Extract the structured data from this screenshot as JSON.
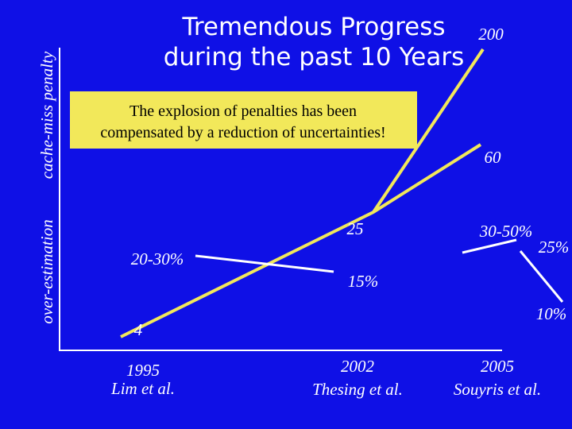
{
  "title": [
    "Tremendous Progress",
    "during the past 10 Years"
  ],
  "callout": [
    "The explosion of penalties has been",
    "compensated by a reduction of uncertainties!"
  ],
  "axis_labels": {
    "upper": "cache-miss penalty",
    "lower": "over-estimation"
  },
  "x_labels": [
    {
      "year": "1995",
      "source": "Lim et al."
    },
    {
      "year": "2002",
      "source": "Thesing et al."
    },
    {
      "year": "2005",
      "source": "Souyris et al."
    }
  ],
  "penalty_labels": [
    "4",
    "25",
    "60",
    "200"
  ],
  "estimation_labels": [
    "20-30%",
    "15%",
    "30-50%",
    "25%",
    "10%"
  ]
}
